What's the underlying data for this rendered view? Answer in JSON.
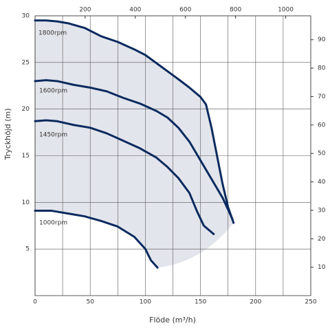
{
  "chart_data": {
    "type": "line",
    "x_label": "Flöde (m³/h)",
    "y_label": "Tryckhöjd (m)",
    "xlim": [
      0,
      250
    ],
    "xticks": [
      0,
      50,
      100,
      150,
      200,
      250
    ],
    "xgrid": [
      25,
      75,
      125,
      175,
      225
    ],
    "ylim": [
      0,
      30
    ],
    "yticks": [
      5,
      10,
      15,
      20,
      25,
      30
    ],
    "x2lim": [
      0,
      1100
    ],
    "x2ticks": [
      200,
      400,
      600,
      800,
      1000
    ],
    "y2lim": [
      0,
      98.4
    ],
    "y2ticks": [
      10,
      20,
      30,
      40,
      50,
      60,
      70,
      80,
      90
    ],
    "grid": true,
    "fill_color": "#e3e5ec",
    "series": [
      {
        "name": "1800rpm",
        "color": "#0a2a5e",
        "x": [
          0,
          10,
          20,
          30,
          45,
          60,
          75,
          90,
          100,
          115,
          130,
          140,
          150,
          155,
          160,
          165,
          170,
          175,
          180
        ],
        "values": [
          29.5,
          29.5,
          29.4,
          29.2,
          28.7,
          27.8,
          27.2,
          26.4,
          25.8,
          24.5,
          23.2,
          22.3,
          21.3,
          20.5,
          18,
          15,
          12,
          9.5,
          7.8
        ]
      },
      {
        "name": "1600rpm",
        "color": "#0a2a5e",
        "x": [
          0,
          10,
          20,
          35,
          50,
          65,
          80,
          95,
          110,
          120,
          130,
          140,
          150,
          160,
          170,
          179
        ],
        "values": [
          23.0,
          23.1,
          23.0,
          22.6,
          22.3,
          21.9,
          21.2,
          20.6,
          19.8,
          19.1,
          18.0,
          16.5,
          14.5,
          12.5,
          10.5,
          8.2
        ]
      },
      {
        "name": "1450rpm",
        "color": "#0a2a5e",
        "x": [
          0,
          10,
          20,
          35,
          50,
          65,
          80,
          95,
          110,
          120,
          130,
          140,
          147,
          153,
          162
        ],
        "values": [
          18.7,
          18.8,
          18.7,
          18.3,
          18.0,
          17.4,
          16.6,
          15.8,
          14.8,
          13.8,
          12.6,
          11.0,
          9.0,
          7.5,
          6.6
        ]
      },
      {
        "name": "1000rpm",
        "color": "#0a2a5e",
        "x": [
          0,
          15,
          30,
          45,
          60,
          75,
          90,
          100,
          105,
          111
        ],
        "values": [
          9.1,
          9.1,
          8.8,
          8.5,
          8.0,
          7.4,
          6.3,
          5.0,
          3.8,
          3.0
        ]
      }
    ]
  }
}
